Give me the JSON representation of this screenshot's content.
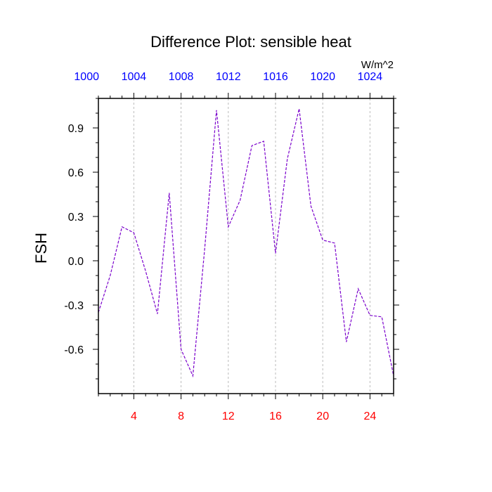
{
  "chart_data": {
    "type": "line",
    "title": "Difference Plot: sensible heat",
    "units": "W/m^2",
    "xlabel": "",
    "ylabel": "FSH",
    "xlim": [
      1,
      26
    ],
    "ylim": [
      -0.9,
      1.1
    ],
    "grid": "vertical dashed at major x ticks",
    "x_ticks": [
      "4",
      "8",
      "12",
      "16",
      "20",
      "24"
    ],
    "y_ticks": [
      "-0.6",
      "-0.3",
      "0.0",
      "0.3",
      "0.6",
      "0.9"
    ],
    "top_axis": {
      "ticks": [
        "1000",
        "1004",
        "1008",
        "1012",
        "1016",
        "1020",
        "1024"
      ],
      "color": "#0000ff"
    },
    "bottom_axis_color": "#ff0000",
    "line_color": "#7a00cc",
    "series": [
      {
        "x": [
          1,
          2,
          3,
          4,
          5,
          6,
          7,
          8,
          9,
          10,
          11,
          12,
          13,
          14,
          15,
          16,
          17,
          18,
          19,
          20,
          21,
          22,
          23,
          24,
          25,
          26
        ],
        "y": [
          -0.35,
          -0.1,
          0.23,
          0.19,
          -0.07,
          -0.36,
          0.46,
          -0.6,
          -0.78,
          0.08,
          1.02,
          0.23,
          0.41,
          0.78,
          0.81,
          0.05,
          0.69,
          1.03,
          0.37,
          0.14,
          0.12,
          -0.55,
          -0.19,
          -0.37,
          -0.38,
          -0.78
        ]
      }
    ]
  }
}
